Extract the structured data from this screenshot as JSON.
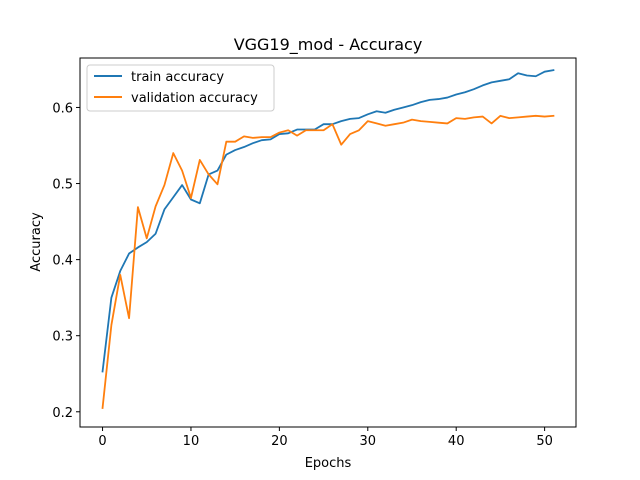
{
  "chart_data": {
    "type": "line",
    "title": "VGG19_mod - Accuracy",
    "xlabel": "Epochs",
    "ylabel": "Accuracy",
    "xlim": [
      -2.55,
      53.55
    ],
    "ylim": [
      0.18,
      0.665
    ],
    "xticks": [
      0,
      10,
      20,
      30,
      40,
      50
    ],
    "yticks": [
      0.2,
      0.3,
      0.4,
      0.5,
      0.6
    ],
    "xtick_labels": [
      "0",
      "10",
      "20",
      "30",
      "40",
      "50"
    ],
    "ytick_labels": [
      "0.2",
      "0.3",
      "0.4",
      "0.5",
      "0.6"
    ],
    "legend_position": "upper-left",
    "grid": false,
    "series": [
      {
        "name": "train accuracy",
        "color": "#1f77b4",
        "x": [
          0,
          1,
          2,
          3,
          4,
          5,
          6,
          7,
          8,
          9,
          10,
          11,
          12,
          13,
          14,
          15,
          16,
          17,
          18,
          19,
          20,
          21,
          22,
          23,
          24,
          25,
          26,
          27,
          28,
          29,
          30,
          31,
          32,
          33,
          34,
          35,
          36,
          37,
          38,
          39,
          40,
          41,
          42,
          43,
          44,
          45,
          46,
          47,
          48,
          49,
          50,
          51
        ],
        "values": [
          0.253,
          0.35,
          0.385,
          0.408,
          0.416,
          0.423,
          0.434,
          0.466,
          0.482,
          0.498,
          0.479,
          0.474,
          0.512,
          0.517,
          0.538,
          0.544,
          0.548,
          0.553,
          0.557,
          0.558,
          0.565,
          0.566,
          0.571,
          0.571,
          0.571,
          0.578,
          0.578,
          0.582,
          0.585,
          0.586,
          0.591,
          0.595,
          0.593,
          0.597,
          0.6,
          0.603,
          0.607,
          0.61,
          0.611,
          0.613,
          0.617,
          0.62,
          0.624,
          0.629,
          0.633,
          0.635,
          0.637,
          0.645,
          0.642,
          0.641,
          0.647,
          0.649
        ]
      },
      {
        "name": "validation accuracy",
        "color": "#ff7f0e",
        "x": [
          0,
          1,
          2,
          3,
          4,
          5,
          6,
          7,
          8,
          9,
          10,
          11,
          12,
          13,
          14,
          15,
          16,
          17,
          18,
          19,
          20,
          21,
          22,
          23,
          24,
          25,
          26,
          27,
          28,
          29,
          30,
          31,
          32,
          33,
          34,
          35,
          36,
          37,
          38,
          39,
          40,
          41,
          42,
          43,
          44,
          45,
          46,
          47,
          48,
          49,
          50,
          51
        ],
        "values": [
          0.205,
          0.314,
          0.38,
          0.323,
          0.469,
          0.428,
          0.47,
          0.498,
          0.54,
          0.517,
          0.481,
          0.531,
          0.512,
          0.499,
          0.555,
          0.555,
          0.562,
          0.56,
          0.561,
          0.561,
          0.567,
          0.57,
          0.563,
          0.57,
          0.57,
          0.57,
          0.578,
          0.551,
          0.565,
          0.57,
          0.582,
          0.579,
          0.576,
          0.578,
          0.58,
          0.584,
          0.582,
          0.581,
          0.58,
          0.579,
          0.586,
          0.585,
          0.587,
          0.588,
          0.579,
          0.589,
          0.586,
          0.587,
          0.588,
          0.589,
          0.588,
          0.589
        ]
      }
    ]
  }
}
